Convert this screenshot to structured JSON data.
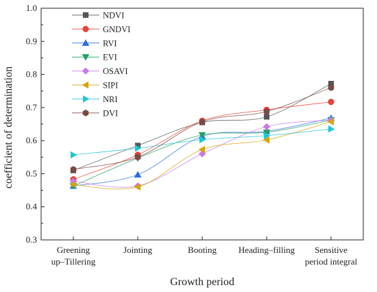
{
  "chart_data": {
    "type": "line",
    "categories": [
      [
        "Greening",
        "up–Tillering"
      ],
      [
        "Jointing"
      ],
      [
        "Booting"
      ],
      [
        "Heading–filling"
      ],
      [
        "Sensitive",
        "period integral"
      ]
    ],
    "xlabel": "Growth period",
    "ylabel": "coefficient of determination",
    "ylim": [
      0.3,
      1.0
    ],
    "yticks": [
      "0.3",
      "0.4",
      "0.5",
      "0.6",
      "0.7",
      "0.8",
      "0.9",
      "1.0"
    ],
    "grid": false,
    "legend_position": "top-left",
    "series": [
      {
        "name": "NDVI",
        "color": "#555555",
        "marker": "square",
        "values": [
          0.51,
          0.585,
          0.655,
          0.672,
          0.772
        ]
      },
      {
        "name": "GNDVI",
        "color": "#e8443a",
        "marker": "circle",
        "values": [
          0.483,
          0.557,
          0.66,
          0.693,
          0.717
        ]
      },
      {
        "name": "RVI",
        "color": "#2a6ee0",
        "marker": "triangle-up",
        "values": [
          0.463,
          0.497,
          0.613,
          0.628,
          0.668
        ]
      },
      {
        "name": "EVI",
        "color": "#22a060",
        "marker": "triangle-down",
        "values": [
          0.463,
          0.547,
          0.617,
          0.625,
          0.662
        ]
      },
      {
        "name": "OSAVI",
        "color": "#c77be8",
        "marker": "diamond",
        "values": [
          0.477,
          0.463,
          0.56,
          0.642,
          0.662
        ]
      },
      {
        "name": "SIPI",
        "color": "#d9a20a",
        "marker": "triangle-left",
        "values": [
          0.467,
          0.46,
          0.573,
          0.602,
          0.657
        ]
      },
      {
        "name": "NRI",
        "color": "#1fc6d6",
        "marker": "triangle-right",
        "values": [
          0.557,
          0.577,
          0.603,
          0.615,
          0.635
        ]
      },
      {
        "name": "DVI",
        "color": "#7a4a44",
        "marker": "hexagon",
        "values": [
          0.513,
          0.55,
          0.657,
          0.688,
          0.76
        ]
      }
    ]
  }
}
